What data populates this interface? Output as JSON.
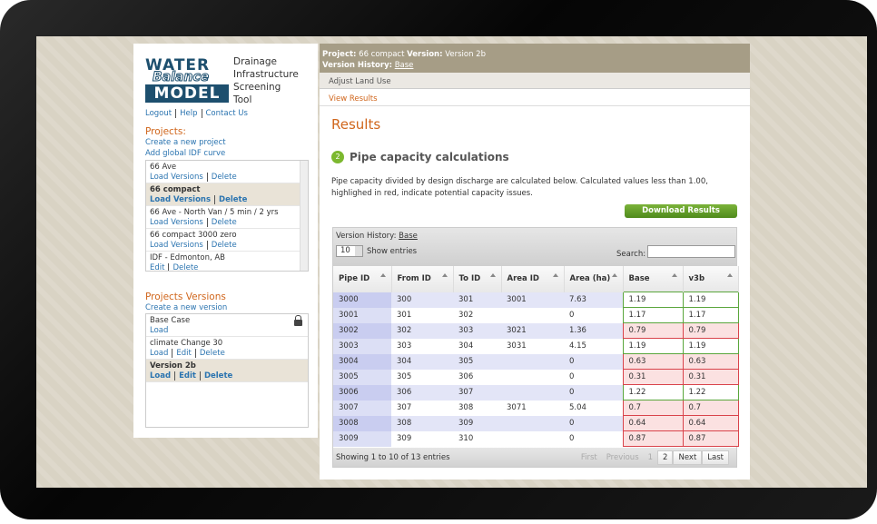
{
  "logo": {
    "lines": [
      "WATER",
      "Balance",
      "MODEL"
    ],
    "tagline": [
      "Drainage",
      "Infrastructure",
      "Screening",
      "Tool"
    ]
  },
  "user_links": [
    "Logout",
    "Help",
    "Contact Us"
  ],
  "projects": {
    "heading": "Projects:",
    "links": [
      "Create a new project",
      "Add global IDF curve"
    ],
    "items": [
      {
        "name": "66 Ave",
        "actions": [
          "Load Versions",
          "Delete"
        ]
      },
      {
        "name": "66 compact",
        "actions": [
          "Load Versions",
          "Delete"
        ],
        "selected": true
      },
      {
        "name": "66 Ave - North Van / 5 min / 2 yrs",
        "actions": [
          "Load Versions",
          "Delete"
        ]
      },
      {
        "name": "66 compact 3000 zero",
        "actions": [
          "Load Versions",
          "Delete"
        ]
      },
      {
        "name": "IDF - Edmonton, AB",
        "actions": [
          "Edit",
          "Delete"
        ]
      }
    ]
  },
  "versions": {
    "heading": "Projects Versions",
    "link": "Create a new version",
    "items": [
      {
        "name": "Base Case",
        "actions": [
          "Load"
        ],
        "locked": true
      },
      {
        "name": "climate Change 30",
        "actions": [
          "Load",
          "Edit",
          "Delete"
        ]
      },
      {
        "name": "Version 2b",
        "actions": [
          "Load",
          "Edit",
          "Delete"
        ],
        "selected": true
      }
    ]
  },
  "header": {
    "project_label": "Project:",
    "project": "66 compact",
    "version_label": "Version:",
    "version": "Version 2b",
    "history_label": "Version History:",
    "history": "Base"
  },
  "tabs": [
    "Adjust Land Use",
    "View Results"
  ],
  "results": {
    "title": "Results",
    "step": "2",
    "step_title": "Pipe capacity calculations",
    "description": "Pipe capacity divided by design discharge are calculated below. Calculated values less than 1.00, highlighed in red, indicate potential capacity issues.",
    "button": "Download Results"
  },
  "table": {
    "history_label": "Version History:",
    "history": "Base",
    "page_length": "10",
    "length_label": "Show entries",
    "search_label": "Search:",
    "columns": [
      "Pipe ID",
      "From ID",
      "To ID",
      "Area ID",
      "Area (ha)",
      "Base",
      "v3b"
    ],
    "rows": [
      [
        3000,
        300,
        301,
        3001,
        7.63,
        1.19,
        1.19
      ],
      [
        3001,
        301,
        302,
        null,
        0,
        1.17,
        1.17
      ],
      [
        3002,
        302,
        303,
        3021,
        1.36,
        0.79,
        0.79
      ],
      [
        3003,
        303,
        304,
        3031,
        4.15,
        1.19,
        1.19
      ],
      [
        3004,
        304,
        305,
        null,
        0,
        0.63,
        0.63
      ],
      [
        3005,
        305,
        306,
        null,
        0,
        0.31,
        0.31
      ],
      [
        3006,
        306,
        307,
        null,
        0,
        1.22,
        1.22
      ],
      [
        3007,
        307,
        308,
        3071,
        5.04,
        0.7,
        0.7
      ],
      [
        3008,
        308,
        309,
        null,
        0,
        0.64,
        0.64
      ],
      [
        3009,
        309,
        310,
        null,
        0,
        0.87,
        0.87
      ]
    ],
    "info": "Showing 1 to 10 of 13 entries",
    "pagination": [
      "First",
      "Previous",
      "1",
      "2",
      "Next",
      "Last"
    ]
  }
}
